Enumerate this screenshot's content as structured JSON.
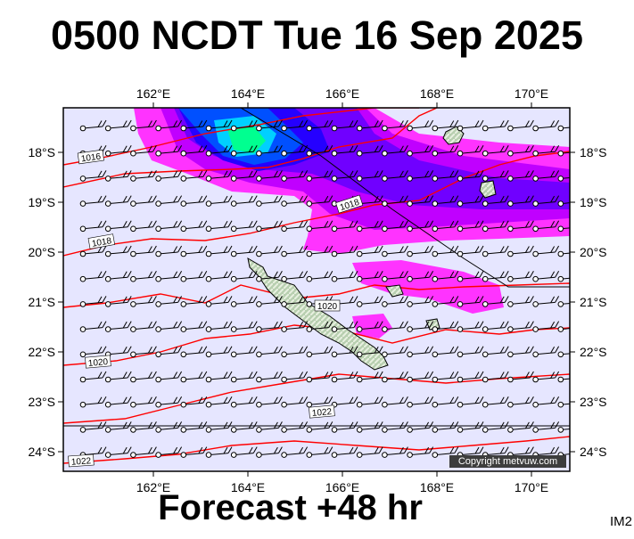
{
  "title": "0500 NCDT Tue 16 Sep 2025",
  "subtitle": "Forecast +48 hr",
  "product_code": "IM2",
  "copyright": "Copyright metvuw.com",
  "axes": {
    "lon_labels": [
      "162°E",
      "164°E",
      "166°E",
      "168°E",
      "170°E"
    ],
    "lat_labels": [
      "18°S",
      "19°S",
      "20°S",
      "21°S",
      "22°S",
      "23°S",
      "24°S"
    ]
  },
  "isobar_labels": [
    "1016",
    "1018",
    "1018",
    "1020",
    "1020",
    "1022",
    "1022"
  ],
  "colors": {
    "sea": "#e6e6ff",
    "isobar": "#ff0000",
    "land": "#b8cfb0",
    "rain_light": "#ff00ff",
    "rain_heavy": "#1400ff",
    "rain_peak": "#00ff90"
  },
  "icons": {
    "wind_barb": "wind-barb-icon",
    "island": "island-shape"
  }
}
